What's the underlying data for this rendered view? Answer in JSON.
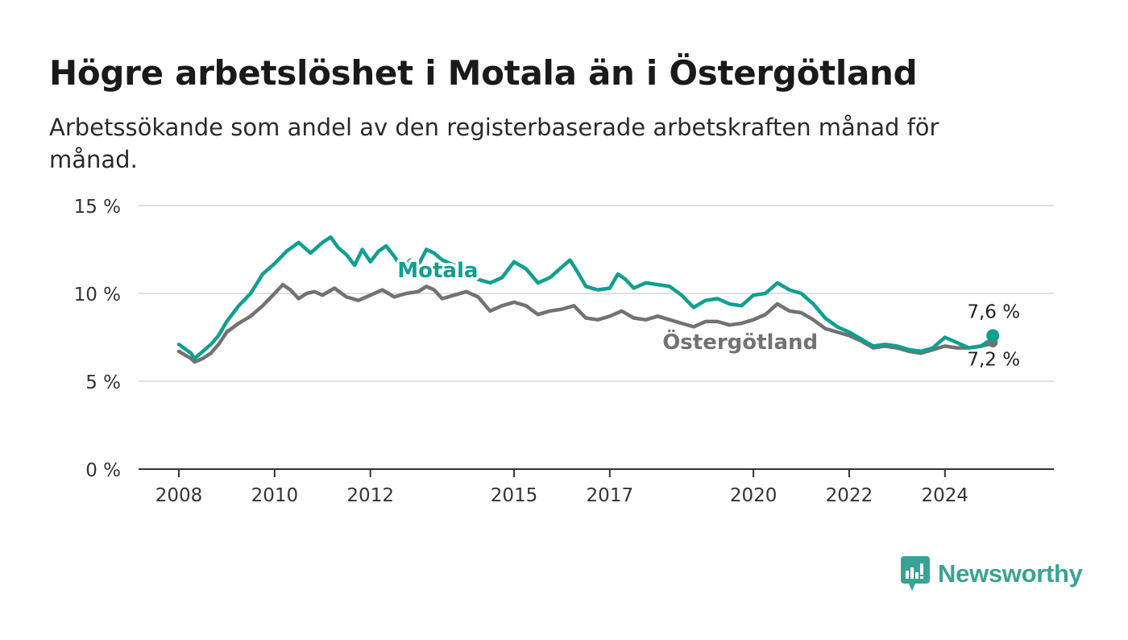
{
  "title": "Högre arbetslöshet i Motala än i Östergötland",
  "subtitle": "Arbetssökande som andel av den registerbaserade arbetskraften månad för månad.",
  "brand": {
    "name": "Newsworthy",
    "icon": "newsworthy-logo-icon",
    "color": "#3aa295"
  },
  "chart_data": {
    "type": "line",
    "xlim": [
      2008.0,
      2025.4
    ],
    "ylim": [
      0,
      15
    ],
    "y_ticks": [
      0,
      5,
      10,
      15
    ],
    "y_tick_labels": [
      "0 %",
      "5 %",
      "10 %",
      "15 %"
    ],
    "x_ticks": [
      2008,
      2010,
      2012,
      2015,
      2017,
      2020,
      2022,
      2024
    ],
    "x_tick_labels": [
      "2008",
      "2010",
      "2012",
      "2015",
      "2017",
      "2020",
      "2022",
      "2024"
    ],
    "grid": true,
    "legend": "inline labels on lines",
    "series": [
      {
        "name": "Motala",
        "color": "#0f9f8f",
        "end_label": "7,6 %",
        "points": [
          [
            2008.0,
            7.1
          ],
          [
            2008.25,
            6.6
          ],
          [
            2008.33,
            6.3
          ],
          [
            2008.5,
            6.7
          ],
          [
            2008.67,
            7.1
          ],
          [
            2008.83,
            7.6
          ],
          [
            2009.0,
            8.4
          ],
          [
            2009.25,
            9.3
          ],
          [
            2009.5,
            10.0
          ],
          [
            2009.75,
            11.1
          ],
          [
            2010.0,
            11.7
          ],
          [
            2010.25,
            12.4
          ],
          [
            2010.5,
            12.9
          ],
          [
            2010.75,
            12.3
          ],
          [
            2011.0,
            12.9
          ],
          [
            2011.17,
            13.2
          ],
          [
            2011.33,
            12.6
          ],
          [
            2011.5,
            12.2
          ],
          [
            2011.67,
            11.6
          ],
          [
            2011.83,
            12.5
          ],
          [
            2012.0,
            11.8
          ],
          [
            2012.17,
            12.4
          ],
          [
            2012.33,
            12.7
          ],
          [
            2012.5,
            12.1
          ],
          [
            2012.67,
            11.4
          ],
          [
            2012.83,
            11.9
          ],
          [
            2013.0,
            11.6
          ],
          [
            2013.17,
            12.5
          ],
          [
            2013.33,
            12.3
          ],
          [
            2013.5,
            11.9
          ],
          [
            2013.75,
            11.6
          ],
          [
            2014.0,
            11.3
          ],
          [
            2014.25,
            10.8
          ],
          [
            2014.5,
            10.6
          ],
          [
            2014.75,
            10.9
          ],
          [
            2015.0,
            11.8
          ],
          [
            2015.25,
            11.4
          ],
          [
            2015.5,
            10.6
          ],
          [
            2015.75,
            10.9
          ],
          [
            2016.0,
            11.5
          ],
          [
            2016.17,
            11.9
          ],
          [
            2016.33,
            11.2
          ],
          [
            2016.5,
            10.4
          ],
          [
            2016.75,
            10.2
          ],
          [
            2017.0,
            10.3
          ],
          [
            2017.17,
            11.1
          ],
          [
            2017.33,
            10.8
          ],
          [
            2017.5,
            10.3
          ],
          [
            2017.75,
            10.6
          ],
          [
            2018.0,
            10.5
          ],
          [
            2018.25,
            10.4
          ],
          [
            2018.5,
            9.9
          ],
          [
            2018.75,
            9.2
          ],
          [
            2019.0,
            9.6
          ],
          [
            2019.25,
            9.7
          ],
          [
            2019.5,
            9.4
          ],
          [
            2019.75,
            9.3
          ],
          [
            2020.0,
            9.9
          ],
          [
            2020.25,
            10.0
          ],
          [
            2020.5,
            10.6
          ],
          [
            2020.75,
            10.2
          ],
          [
            2021.0,
            10.0
          ],
          [
            2021.25,
            9.4
          ],
          [
            2021.5,
            8.6
          ],
          [
            2021.75,
            8.1
          ],
          [
            2022.0,
            7.8
          ],
          [
            2022.25,
            7.4
          ],
          [
            2022.5,
            7.0
          ],
          [
            2022.75,
            7.1
          ],
          [
            2023.0,
            7.0
          ],
          [
            2023.25,
            6.8
          ],
          [
            2023.5,
            6.7
          ],
          [
            2023.75,
            6.9
          ],
          [
            2024.0,
            7.5
          ],
          [
            2024.25,
            7.2
          ],
          [
            2024.5,
            6.9
          ],
          [
            2024.75,
            7.0
          ],
          [
            2024.92,
            7.3
          ],
          [
            2025.0,
            7.6
          ]
        ]
      },
      {
        "name": "Östergötland",
        "color": "#727272",
        "end_label": "7,2 %",
        "points": [
          [
            2008.0,
            6.7
          ],
          [
            2008.25,
            6.3
          ],
          [
            2008.33,
            6.1
          ],
          [
            2008.5,
            6.3
          ],
          [
            2008.67,
            6.6
          ],
          [
            2008.83,
            7.1
          ],
          [
            2009.0,
            7.8
          ],
          [
            2009.25,
            8.3
          ],
          [
            2009.5,
            8.7
          ],
          [
            2009.75,
            9.3
          ],
          [
            2010.0,
            10.0
          ],
          [
            2010.17,
            10.5
          ],
          [
            2010.33,
            10.2
          ],
          [
            2010.5,
            9.7
          ],
          [
            2010.67,
            10.0
          ],
          [
            2010.83,
            10.1
          ],
          [
            2011.0,
            9.9
          ],
          [
            2011.25,
            10.3
          ],
          [
            2011.5,
            9.8
          ],
          [
            2011.75,
            9.6
          ],
          [
            2012.0,
            9.9
          ],
          [
            2012.25,
            10.2
          ],
          [
            2012.5,
            9.8
          ],
          [
            2012.75,
            10.0
          ],
          [
            2013.0,
            10.1
          ],
          [
            2013.17,
            10.4
          ],
          [
            2013.33,
            10.2
          ],
          [
            2013.5,
            9.7
          ],
          [
            2013.75,
            9.9
          ],
          [
            2014.0,
            10.1
          ],
          [
            2014.25,
            9.8
          ],
          [
            2014.5,
            9.0
          ],
          [
            2014.75,
            9.3
          ],
          [
            2015.0,
            9.5
          ],
          [
            2015.25,
            9.3
          ],
          [
            2015.5,
            8.8
          ],
          [
            2015.75,
            9.0
          ],
          [
            2016.0,
            9.1
          ],
          [
            2016.25,
            9.3
          ],
          [
            2016.5,
            8.6
          ],
          [
            2016.75,
            8.5
          ],
          [
            2017.0,
            8.7
          ],
          [
            2017.25,
            9.0
          ],
          [
            2017.5,
            8.6
          ],
          [
            2017.75,
            8.5
          ],
          [
            2018.0,
            8.7
          ],
          [
            2018.25,
            8.5
          ],
          [
            2018.5,
            8.3
          ],
          [
            2018.75,
            8.1
          ],
          [
            2019.0,
            8.4
          ],
          [
            2019.25,
            8.4
          ],
          [
            2019.5,
            8.2
          ],
          [
            2019.75,
            8.3
          ],
          [
            2020.0,
            8.5
          ],
          [
            2020.25,
            8.8
          ],
          [
            2020.5,
            9.4
          ],
          [
            2020.75,
            9.0
          ],
          [
            2021.0,
            8.9
          ],
          [
            2021.25,
            8.5
          ],
          [
            2021.5,
            8.0
          ],
          [
            2021.75,
            7.8
          ],
          [
            2022.0,
            7.6
          ],
          [
            2022.25,
            7.3
          ],
          [
            2022.5,
            6.9
          ],
          [
            2022.75,
            7.0
          ],
          [
            2023.0,
            6.9
          ],
          [
            2023.25,
            6.7
          ],
          [
            2023.5,
            6.6
          ],
          [
            2023.75,
            6.8
          ],
          [
            2024.0,
            7.0
          ],
          [
            2024.25,
            6.9
          ],
          [
            2024.5,
            6.9
          ],
          [
            2024.75,
            7.0
          ],
          [
            2024.92,
            7.1
          ],
          [
            2025.0,
            7.2
          ]
        ]
      }
    ]
  }
}
